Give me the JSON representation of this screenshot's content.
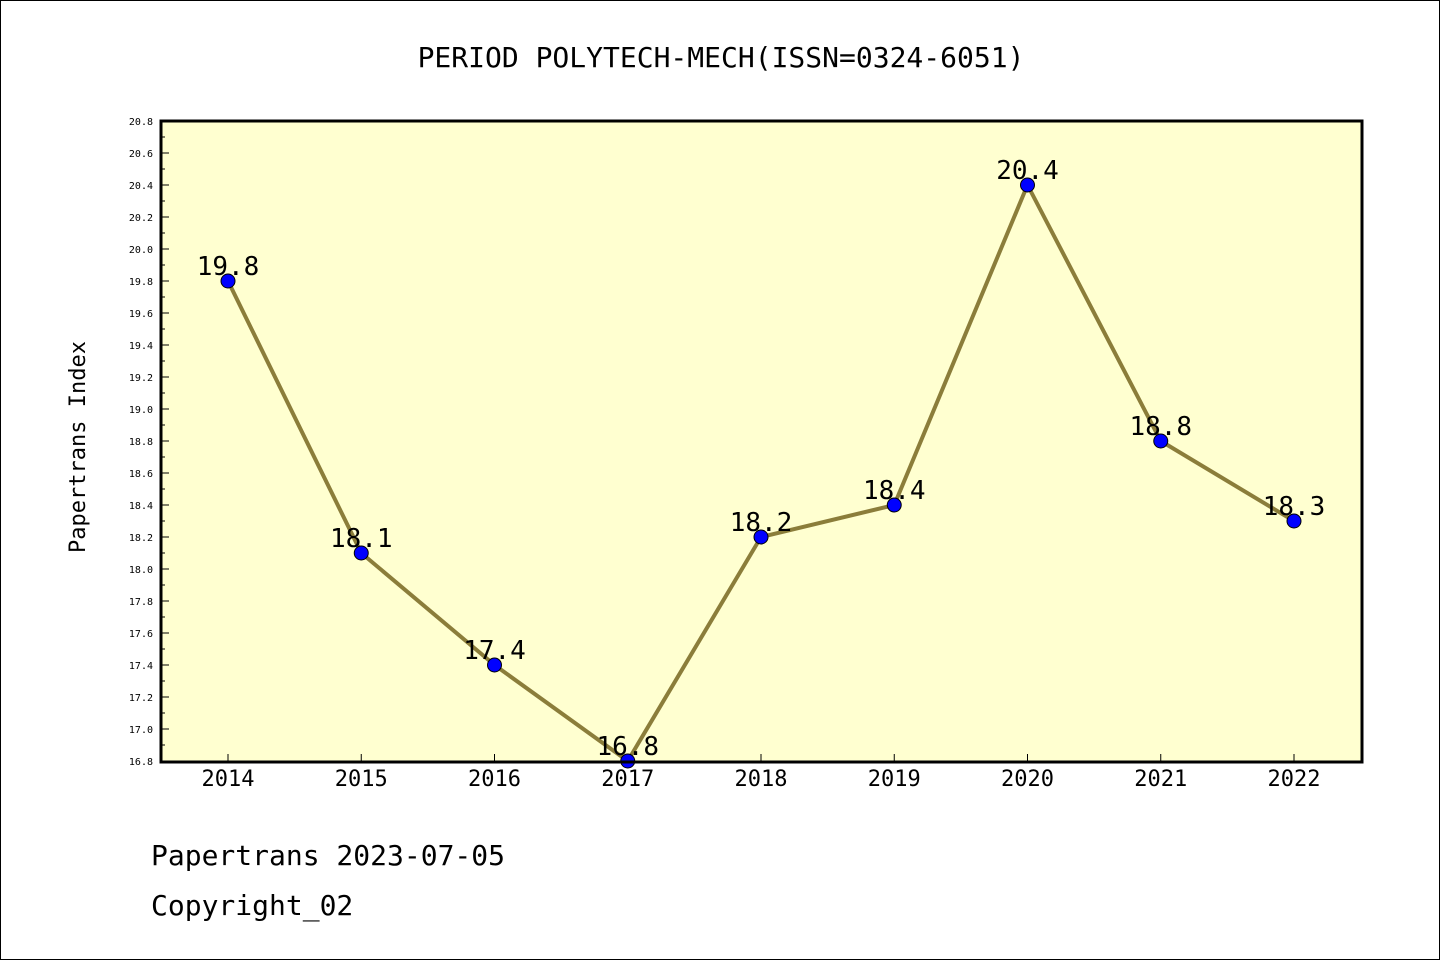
{
  "chart_data": {
    "type": "line",
    "title": "PERIOD POLYTECH-MECH(ISSN=0324-6051)",
    "xlabel": "",
    "ylabel": "Papertrans Index",
    "categories": [
      "2014",
      "2015",
      "2016",
      "2017",
      "2018",
      "2019",
      "2020",
      "2021",
      "2022"
    ],
    "series": [
      {
        "values": [
          19.8,
          18.1,
          17.4,
          16.8,
          18.2,
          18.4,
          20.4,
          18.8,
          18.3
        ],
        "data_labels": [
          "19.8",
          "18.1",
          "17.4",
          "16.8",
          "18.2",
          "18.4",
          "20.4",
          "18.8",
          "18.3"
        ],
        "line_color": "#8b7d3a",
        "marker_color": "#0000ff"
      }
    ],
    "ylim": [
      16.8,
      20.8
    ],
    "yticks": [
      "16.8",
      "17.0",
      "17.2",
      "17.4",
      "17.6",
      "17.8",
      "18.0",
      "18.2",
      "18.4",
      "18.6",
      "18.8",
      "19.0",
      "19.2",
      "19.4",
      "19.6",
      "19.8",
      "20.0",
      "20.2",
      "20.4",
      "20.6",
      "20.8"
    ],
    "plot_background": "#ffffd0",
    "grid": false,
    "legend": "none"
  },
  "footer": {
    "line1": "Papertrans 2023-07-05",
    "line2": "Copyright_02"
  }
}
